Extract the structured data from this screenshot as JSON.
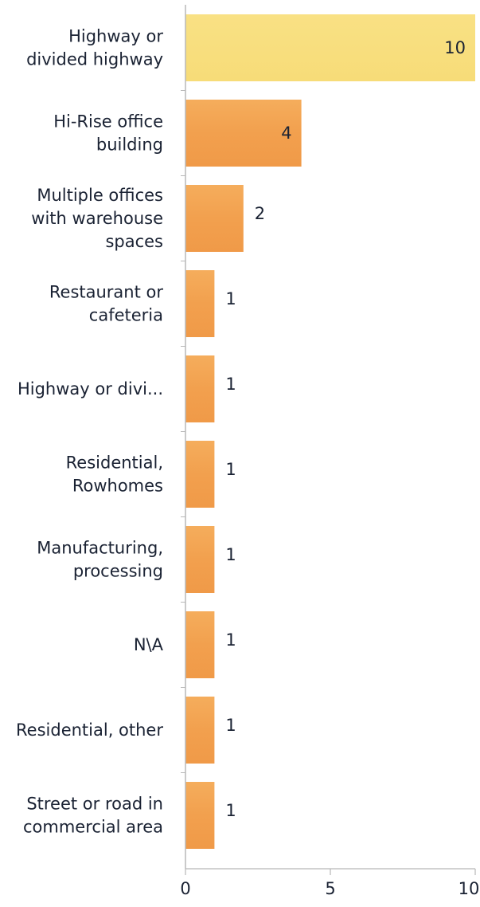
{
  "chart_data": {
    "type": "bar",
    "orientation": "horizontal",
    "categories": [
      [
        "Highway or",
        "divided highway"
      ],
      [
        "Hi-Rise office",
        "building"
      ],
      [
        "Multiple offices",
        "with warehouse",
        "spaces"
      ],
      [
        "Restaurant or",
        "cafeteria"
      ],
      [
        "Highway or divi..."
      ],
      [
        "Residential,",
        "Rowhomes"
      ],
      [
        "Manufacturing,",
        "processing"
      ],
      [
        "N\\A"
      ],
      [
        "Residential, other"
      ],
      [
        "Street or road in",
        "commercial area"
      ]
    ],
    "values": [
      10,
      4,
      2,
      1,
      1,
      1,
      1,
      1,
      1,
      1
    ],
    "value_labels": [
      "10",
      "4",
      "2",
      "1",
      "1",
      "1",
      "1",
      "1",
      "1",
      "1"
    ],
    "xlim": [
      0,
      10
    ],
    "xticks": [
      0,
      5,
      10
    ],
    "xtick_labels": [
      "0",
      "5",
      "10"
    ],
    "title": "",
    "xlabel": "",
    "ylabel": "",
    "grid": false,
    "legend": "none",
    "colors": {
      "highlight": "#f7dc78",
      "bar": "#f2a04e",
      "axis": "#b8b8b8",
      "text": "#1a2233"
    }
  }
}
